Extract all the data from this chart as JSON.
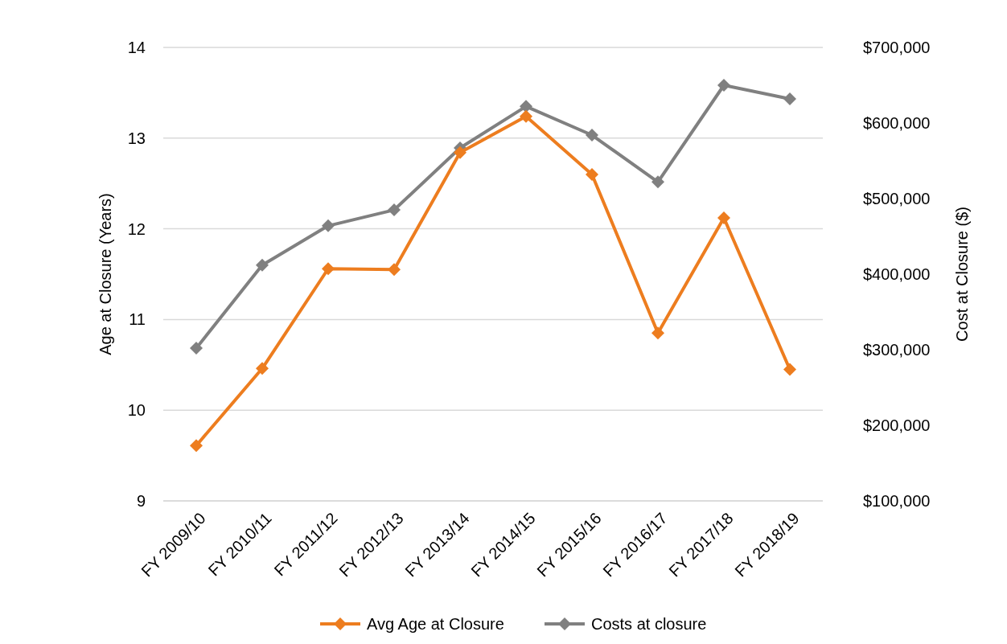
{
  "chart_data": {
    "type": "line",
    "categories": [
      "FY 2009/10",
      "FY 2010/11",
      "FY 2011/12",
      "FY 2012/13",
      "FY 2013/14",
      "FY 2014/15",
      "FY 2015/16",
      "FY 2016/17",
      "FY 2017/18",
      "FY 2018/19"
    ],
    "ylabel": "Age at Closure (Years)",
    "y2label": "Cost at Closure ($)",
    "ylim": [
      9,
      14
    ],
    "yticks": [
      9,
      10,
      11,
      12,
      13,
      14
    ],
    "y2lim": [
      100000,
      700000
    ],
    "y2ticks": [
      {
        "value": 100000,
        "label": "$100,000"
      },
      {
        "value": 200000,
        "label": "$200,000"
      },
      {
        "value": 300000,
        "label": "$300,000"
      },
      {
        "value": 400000,
        "label": "$400,000"
      },
      {
        "value": 500000,
        "label": "$500,000"
      },
      {
        "value": 600000,
        "label": "$600,000"
      },
      {
        "value": 700000,
        "label": "$700,000"
      }
    ],
    "series": [
      {
        "name": "Avg Age at Closure",
        "color": "#ed7d1f",
        "values": [
          9.61,
          10.46,
          11.56,
          11.55,
          12.84,
          13.24,
          12.6,
          10.85,
          12.12,
          10.45
        ]
      },
      {
        "name": "Costs at closure",
        "color": "#808080",
        "axis": "y2",
        "values": [
          302000,
          412000,
          464000,
          485000,
          567000,
          622000,
          584000,
          522000,
          650000,
          632000
        ]
      }
    ],
    "grid": "y",
    "legend": "bottom",
    "marker": "diamond",
    "line_style": "solid"
  }
}
